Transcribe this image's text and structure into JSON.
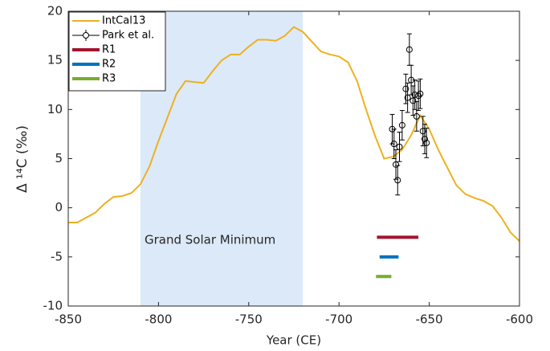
{
  "chart_data": {
    "type": "line",
    "xlabel": "Year (CE)",
    "ylabel": "Δ ¹⁴C (‰)",
    "annotation": "Grand Solar Minimum",
    "shaded_region": {
      "x": [
        -810,
        -720
      ],
      "color": "#dce9f8"
    },
    "xlim": [
      -850,
      -600
    ],
    "xticks": [
      -850,
      -800,
      -750,
      -700,
      -650,
      -600
    ],
    "ylim": [
      -10,
      20
    ],
    "yticks": [
      -10,
      -5,
      0,
      5,
      10,
      15,
      20
    ],
    "legend": "upper left",
    "series": [
      {
        "name": "IntCal13",
        "color": "#EDB120",
        "x": [
          -850,
          -845,
          -835,
          -830,
          -825,
          -820,
          -815,
          -810,
          -805,
          -800,
          -795,
          -790,
          -785,
          -780,
          -775,
          -770,
          -765,
          -760,
          -755,
          -750,
          -745,
          -740,
          -735,
          -730,
          -725,
          -720,
          -715,
          -710,
          -705,
          -700,
          -695,
          -690,
          -685,
          -680,
          -675,
          -670,
          -665,
          -660,
          -655,
          -650,
          -645,
          -640,
          -635,
          -630,
          -625,
          -620,
          -615,
          -610,
          -605,
          -600
        ],
        "values": [
          -1.5,
          -1.5,
          -0.5,
          0.4,
          1.1,
          1.2,
          1.5,
          2.4,
          4.2,
          6.8,
          9.2,
          11.6,
          12.9,
          12.8,
          12.7,
          13.9,
          15.0,
          15.6,
          15.6,
          16.4,
          17.1,
          17.1,
          17.0,
          17.5,
          18.4,
          17.9,
          16.9,
          15.9,
          15.6,
          15.4,
          14.8,
          12.9,
          10.0,
          7.3,
          5.0,
          5.2,
          5.9,
          7.4,
          9.4,
          8.0,
          5.9,
          4.1,
          2.3,
          1.4,
          1.0,
          0.7,
          0.2,
          -1.0,
          -2.5,
          -3.4
        ]
      },
      {
        "name": "Park et al.",
        "color": "#000000",
        "x": [
          -670.5,
          -669.5,
          -668.5,
          -667.5,
          -666.5,
          -665,
          -663,
          -662,
          -661,
          -660,
          -659,
          -658,
          -657,
          -656,
          -655,
          -653.5,
          -652.5,
          -651.5
        ],
        "values": [
          8.0,
          6.5,
          4.4,
          2.8,
          6.2,
          8.4,
          12.1,
          11.2,
          16.1,
          13.0,
          10.9,
          11.5,
          9.3,
          11.4,
          11.6,
          7.8,
          7.0,
          6.6
        ],
        "errors": [
          1.5,
          1.5,
          1.5,
          1.5,
          1.5,
          1.5,
          1.5,
          1.5,
          1.6,
          1.5,
          1.5,
          1.5,
          1.5,
          1.5,
          1.5,
          1.5,
          1.5,
          1.5
        ]
      },
      {
        "name": "R1",
        "color": "#A2142F",
        "x": [
          -679,
          -656
        ],
        "values": [
          -3,
          -3
        ]
      },
      {
        "name": "R2",
        "color": "#0072BD",
        "x": [
          -677.5,
          -667
        ],
        "values": [
          -5,
          -5
        ]
      },
      {
        "name": "R3",
        "color": "#77AC30",
        "x": [
          -679.5,
          -671
        ],
        "values": [
          -7,
          -7
        ]
      }
    ]
  }
}
